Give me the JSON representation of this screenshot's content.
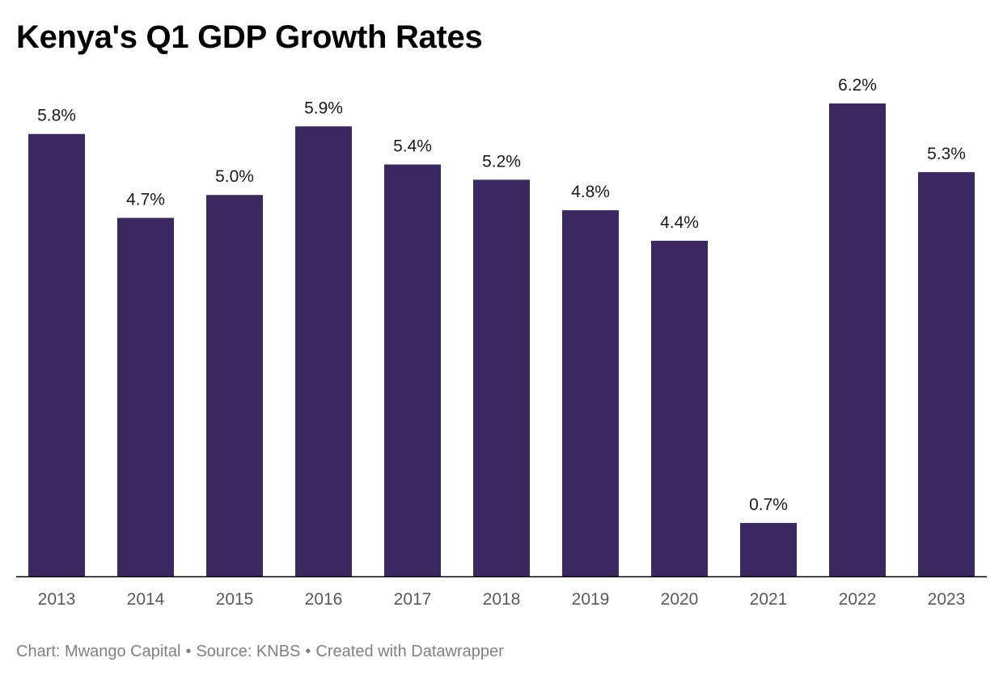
{
  "chart_data": {
    "type": "bar",
    "title": "Kenya's Q1 GDP Growth Rates",
    "categories": [
      "2013",
      "2014",
      "2015",
      "2016",
      "2017",
      "2018",
      "2019",
      "2020",
      "2021",
      "2022",
      "2023"
    ],
    "values": [
      5.8,
      4.7,
      5.0,
      5.9,
      5.4,
      5.2,
      4.8,
      4.4,
      0.7,
      6.2,
      5.3
    ],
    "value_labels": [
      "5.8%",
      "4.7%",
      "5.0%",
      "5.9%",
      "5.4%",
      "5.2%",
      "4.8%",
      "4.4%",
      "0.7%",
      "6.2%",
      "5.3%"
    ],
    "xlabel": "",
    "ylabel": "",
    "ylim": [
      0,
      6.2
    ],
    "grid": false,
    "colors": {
      "bar": "#3c2861",
      "baseline": "#000000",
      "tick_label": "#595959",
      "value_label": "#1a1a1a"
    }
  },
  "footer": {
    "chart_credit": "Chart: Mwango Capital",
    "separator": "•",
    "source": "Source: KNBS",
    "created_with": "Created with Datawrapper"
  }
}
